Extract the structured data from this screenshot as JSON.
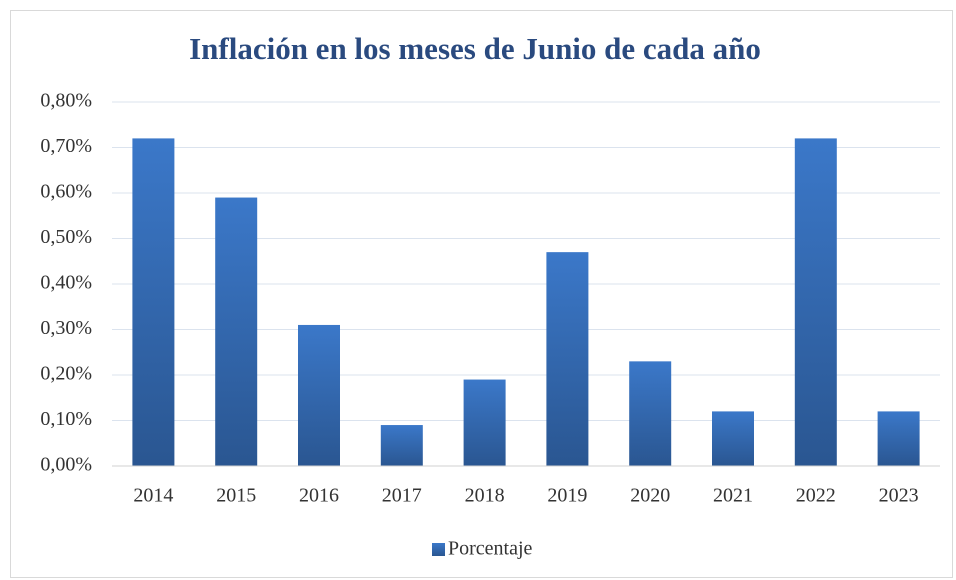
{
  "chart_data": {
    "type": "bar",
    "title": "Inflación en los meses de Junio de cada año",
    "categories": [
      "2014",
      "2015",
      "2016",
      "2017",
      "2018",
      "2019",
      "2020",
      "2021",
      "2022",
      "2023"
    ],
    "series": [
      {
        "name": "Porcentaje",
        "color": "#3b78c9",
        "values": [
          0.72,
          0.59,
          0.31,
          0.09,
          0.19,
          0.47,
          0.23,
          0.12,
          0.72,
          0.12
        ]
      }
    ],
    "ylim": [
      0,
      0.8
    ],
    "yticks": [
      {
        "value": 0,
        "label": "0,00%"
      },
      {
        "value": 0.1,
        "label": "0,10%"
      },
      {
        "value": 0.2,
        "label": "0,20%"
      },
      {
        "value": 0.3,
        "label": "0,30%"
      },
      {
        "value": 0.4,
        "label": "0,40%"
      },
      {
        "value": 0.5,
        "label": "0,50%"
      },
      {
        "value": 0.6,
        "label": "0,60%"
      },
      {
        "value": 0.7,
        "label": "0,70%"
      },
      {
        "value": 0.8,
        "label": "0,80%"
      }
    ],
    "grid": true,
    "legend": "bottom"
  }
}
